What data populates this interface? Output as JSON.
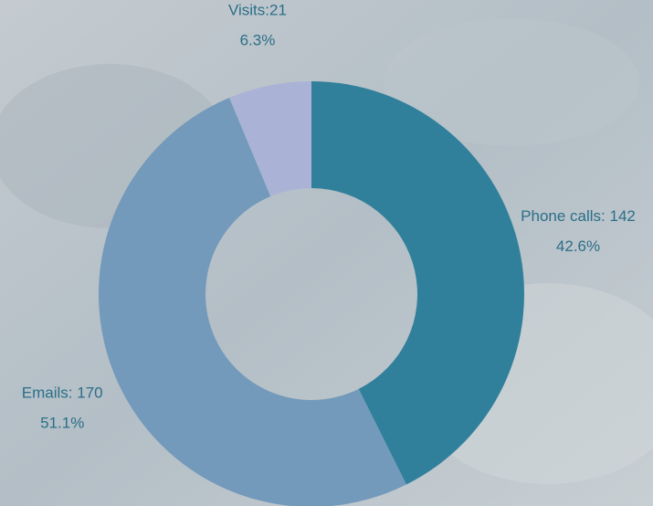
{
  "chart_data": {
    "type": "donut",
    "values": [
      142,
      170,
      21
    ],
    "value_labels": [
      "Phone calls: 142",
      "Emails: 170",
      "Visits:21"
    ],
    "percents": [
      42.6,
      51.1,
      6.3
    ],
    "percent_labels": [
      "42.6%",
      "51.1%",
      "6.3%"
    ],
    "colors": [
      "#31809b",
      "#7399bb",
      "#aab3d6"
    ]
  }
}
